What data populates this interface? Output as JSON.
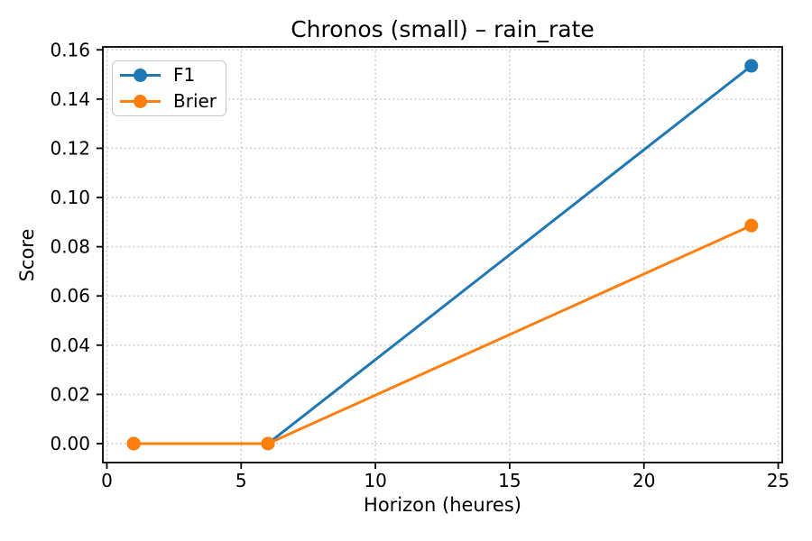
{
  "chart_data": {
    "type": "line",
    "title": "Chronos (small) – rain_rate",
    "xlabel": "Horizon (heures)",
    "ylabel": "Score",
    "x": [
      1,
      6,
      24
    ],
    "series": [
      {
        "name": "F1",
        "color": "#1f77b4",
        "values": [
          0.0,
          0.0,
          0.1535
        ]
      },
      {
        "name": "Brier",
        "color": "#ff7f0e",
        "values": [
          0.0,
          0.0,
          0.0886
        ]
      }
    ],
    "xlim": [
      -0.15,
      25.15
    ],
    "ylim": [
      -0.0077,
      0.1612
    ],
    "xticks": [
      0,
      5,
      10,
      15,
      20,
      25
    ],
    "xtick_labels": [
      "0",
      "5",
      "10",
      "15",
      "20",
      "25"
    ],
    "yticks": [
      0.0,
      0.02,
      0.04,
      0.06,
      0.08,
      0.1,
      0.12,
      0.14,
      0.16
    ],
    "ytick_labels": [
      "0.00",
      "0.02",
      "0.04",
      "0.06",
      "0.08",
      "0.10",
      "0.12",
      "0.14",
      "0.16"
    ],
    "grid": true,
    "grid_style": "dotted",
    "legend_position": "upper-left",
    "marker": "o"
  },
  "colors": {
    "background": "#ffffff",
    "spine": "#000000",
    "grid": "#cccccc",
    "tick_text": "#000000",
    "legend_border": "#c8c8c8"
  }
}
